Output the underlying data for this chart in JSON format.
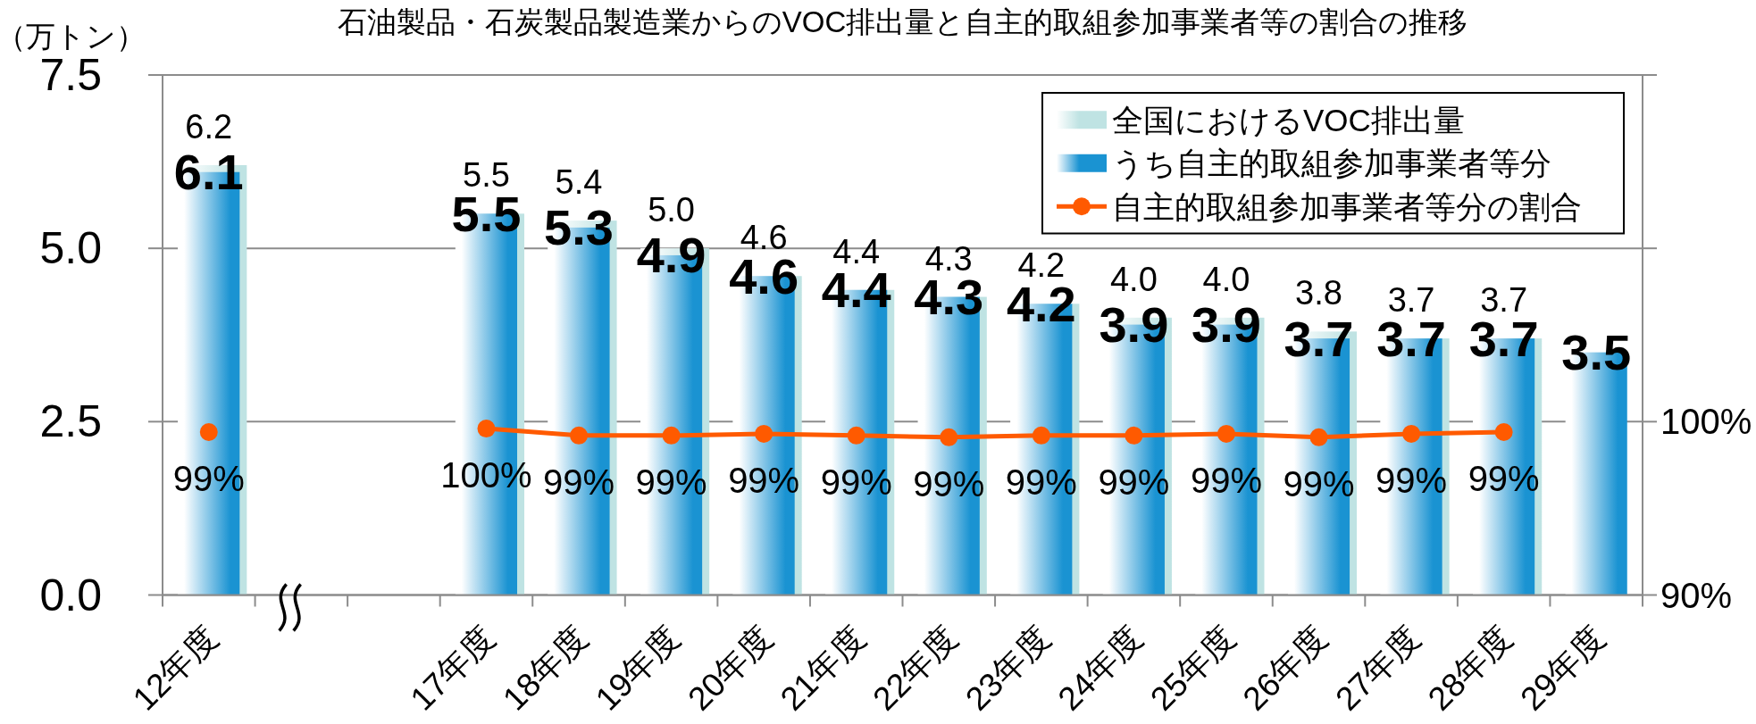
{
  "chart_data": {
    "type": "bar",
    "title": "石油製品・石炭製品製造業からのVOC排出量と自主的取組参加事業者等の割合の推移",
    "ylabel": "（万トン）",
    "categories": [
      "12年度",
      null,
      null,
      "17年度",
      "18年度",
      "19年度",
      "20年度",
      "21年度",
      "22年度",
      "23年度",
      "24年度",
      "25年度",
      "26年度",
      "27年度",
      "28年度",
      "29年度"
    ],
    "series": [
      {
        "name": "全国におけるVOC排出量",
        "color": "#bfe3e3",
        "values": [
          6.2,
          null,
          null,
          5.5,
          5.4,
          5.0,
          4.6,
          4.4,
          4.3,
          4.2,
          4.0,
          4.0,
          3.8,
          3.7,
          3.7,
          null
        ],
        "value_labels": [
          "6.2",
          null,
          null,
          "5.5",
          "5.4",
          "5.0",
          "4.6",
          "4.4",
          "4.3",
          "4.2",
          "4.0",
          "4.0",
          "3.8",
          "3.7",
          "3.7",
          null
        ]
      },
      {
        "name": "うち自主的取組参加事業者等分",
        "color": "#1a93d2",
        "values": [
          6.1,
          null,
          null,
          5.5,
          5.3,
          4.9,
          4.6,
          4.4,
          4.3,
          4.2,
          3.9,
          3.9,
          3.7,
          3.7,
          3.7,
          3.5
        ],
        "value_labels": [
          "6.1",
          null,
          null,
          "5.5",
          "5.3",
          "4.9",
          "4.6",
          "4.4",
          "4.3",
          "4.2",
          "3.9",
          "3.9",
          "3.7",
          "3.7",
          "3.7",
          "3.5"
        ]
      },
      {
        "name": "自主的取組参加事業者等分の割合",
        "type": "line",
        "axis": "y2",
        "color": "#ff5a00",
        "values": [
          99.4,
          null,
          null,
          99.6,
          99.2,
          99.2,
          99.3,
          99.2,
          99.1,
          99.2,
          99.2,
          99.3,
          99.1,
          99.3,
          99.4,
          null
        ],
        "value_labels": [
          "99%",
          null,
          null,
          "100%",
          "99%",
          "99%",
          "99%",
          "99%",
          "99%",
          "99%",
          "99%",
          "99%",
          "99%",
          "99%",
          "99%",
          null
        ]
      }
    ],
    "ylim": [
      0,
      7.5
    ],
    "yticks": [
      {
        "value": 0,
        "label": "0.0"
      },
      2.5,
      {
        "value": 5,
        "label": "5.0"
      },
      7.5
    ],
    "y2lim": [
      90,
      120
    ],
    "y2ticks": [
      {
        "value": 90,
        "label": "90%"
      },
      {
        "value": 100,
        "label": "100%"
      },
      {
        "value": 110,
        "label": null
      },
      {
        "value": 120,
        "label": null
      }
    ],
    "grid": "y",
    "legend": "top right",
    "marker": "circle",
    "line_style": "solid"
  }
}
